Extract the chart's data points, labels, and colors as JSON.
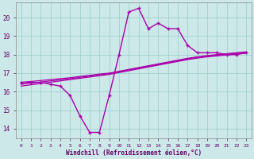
{
  "x": [
    0,
    1,
    2,
    3,
    4,
    5,
    6,
    7,
    8,
    9,
    10,
    11,
    12,
    13,
    14,
    15,
    16,
    17,
    18,
    19,
    20,
    21,
    22,
    23
  ],
  "windchill": [
    16.5,
    16.5,
    16.5,
    16.4,
    16.3,
    15.8,
    14.7,
    13.8,
    13.8,
    15.8,
    18.0,
    20.3,
    20.5,
    19.4,
    19.7,
    19.4,
    19.4,
    18.5,
    18.1,
    18.1,
    18.1,
    18.0,
    18.0,
    18.1
  ],
  "trend1": [
    16.5,
    16.55,
    16.6,
    16.65,
    16.7,
    16.75,
    16.82,
    16.88,
    16.95,
    17.0,
    17.1,
    17.2,
    17.3,
    17.4,
    17.5,
    17.6,
    17.7,
    17.8,
    17.88,
    17.95,
    18.0,
    18.05,
    18.1,
    18.15
  ],
  "trend2": [
    16.4,
    16.46,
    16.52,
    16.58,
    16.64,
    16.7,
    16.77,
    16.84,
    16.91,
    16.97,
    17.07,
    17.17,
    17.27,
    17.37,
    17.47,
    17.57,
    17.67,
    17.77,
    17.85,
    17.92,
    17.97,
    18.02,
    18.07,
    18.12
  ],
  "trend3": [
    16.3,
    16.37,
    16.44,
    16.51,
    16.58,
    16.65,
    16.72,
    16.79,
    16.86,
    16.93,
    17.03,
    17.13,
    17.23,
    17.33,
    17.43,
    17.53,
    17.63,
    17.73,
    17.81,
    17.88,
    17.93,
    17.98,
    18.03,
    18.08
  ],
  "line_color": "#aa00aa",
  "bg_color": "#cce8e8",
  "grid_color": "#99cccc",
  "xlabel": "Windchill (Refroidissement éolien,°C)",
  "ylim": [
    13.5,
    20.8
  ],
  "xlim": [
    -0.5,
    23.5
  ],
  "yticks": [
    14,
    15,
    16,
    17,
    18,
    19,
    20
  ],
  "xticks": [
    0,
    1,
    2,
    3,
    4,
    5,
    6,
    7,
    8,
    9,
    10,
    11,
    12,
    13,
    14,
    15,
    16,
    17,
    18,
    19,
    20,
    21,
    22,
    23
  ]
}
